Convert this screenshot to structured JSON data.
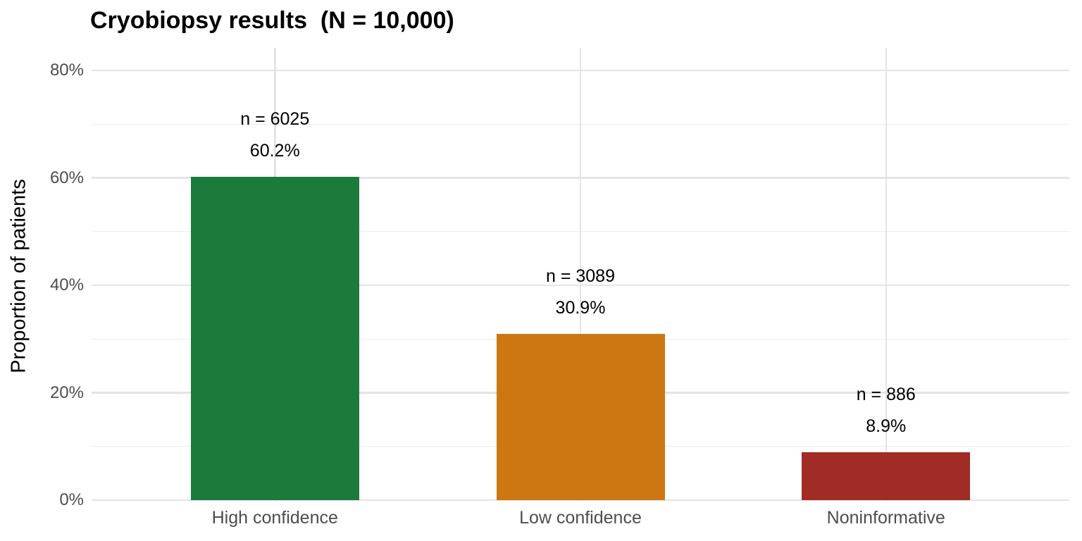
{
  "chart_data": {
    "type": "bar",
    "title": "Cryobiopsy results  (N = 10,000)",
    "total_label": "N = 10,000",
    "total_n": 10000,
    "xlabel": "",
    "ylabel": "Proportion of patients",
    "categories": [
      "High confidence",
      "Low confidence",
      "Noninformative"
    ],
    "values": [
      60.2,
      30.9,
      8.9
    ],
    "counts": [
      6025,
      3089,
      886
    ],
    "bar_labels": [
      {
        "line1": "n = 6025",
        "line2": "60.2%"
      },
      {
        "line1": "n = 3089",
        "line2": "30.9%"
      },
      {
        "line1": "n = 886",
        "line2": "8.9%"
      }
    ],
    "colors": [
      "#1b7b3b",
      "#cc7711",
      "#a12b25"
    ],
    "ylim": [
      0,
      84
    ],
    "y_tick_values": [
      0,
      20,
      40,
      60,
      80
    ],
    "y_tick_labels": [
      "0%",
      "20%",
      "40%",
      "60%",
      "80%"
    ],
    "y_minor_values": [
      10,
      30,
      50,
      70
    ],
    "grid": "horizontal major+minor gridlines, vertical major gridline at each category center",
    "legend": "none",
    "background": "#ffffff"
  }
}
